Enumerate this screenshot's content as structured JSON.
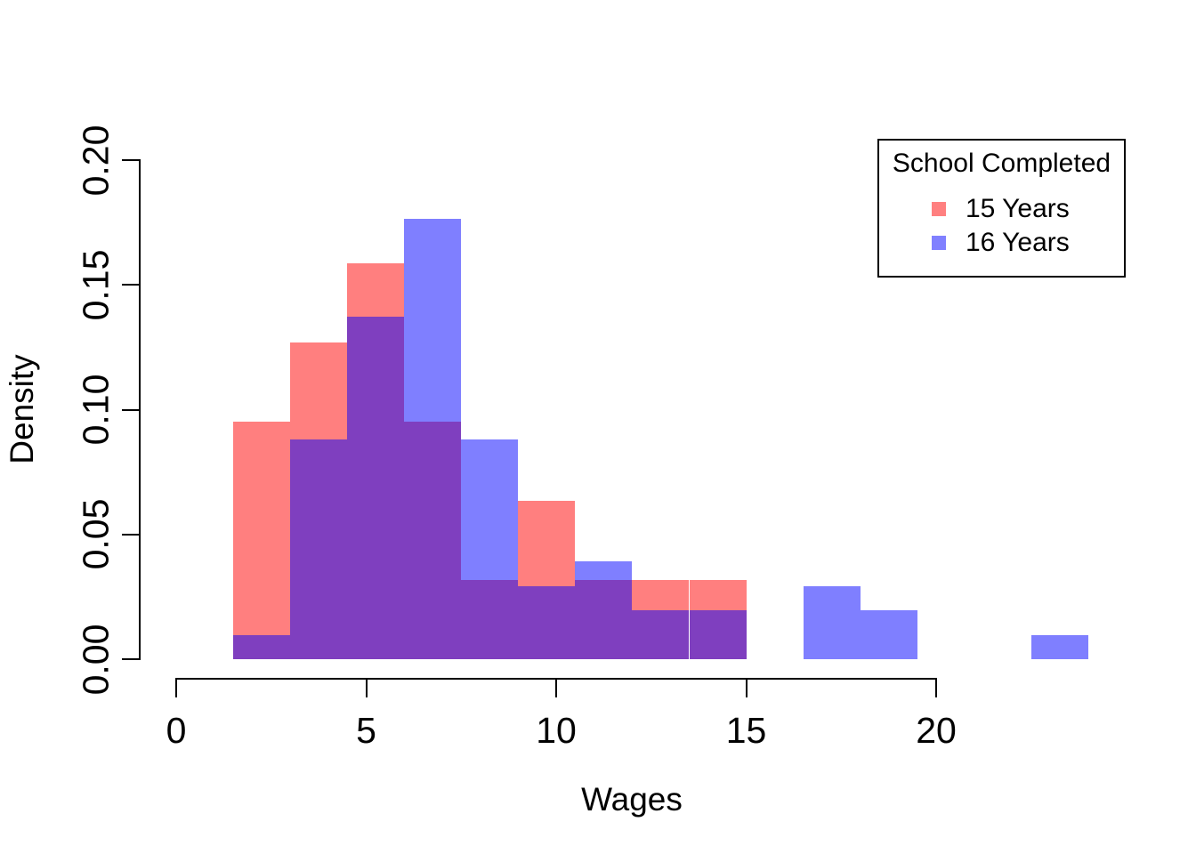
{
  "figure": {
    "background_color": "#FFFFFF",
    "text_color": "#000000"
  },
  "chart_data": {
    "type": "histogram",
    "title": "",
    "xlabel": "Wages",
    "ylabel": "Density",
    "xlim": [
      0,
      20
    ],
    "ylim": [
      0,
      0.2
    ],
    "grid": false,
    "x_ticks": [
      0,
      5,
      10,
      15,
      20
    ],
    "y_ticks": [
      {
        "value": 0.0,
        "label": "0.00"
      },
      {
        "value": 0.05,
        "label": "0.05"
      },
      {
        "value": 0.1,
        "label": "0.10"
      },
      {
        "value": 0.15,
        "label": "0.15"
      },
      {
        "value": 0.2,
        "label": "0.20"
      }
    ],
    "bin_width": 1.5,
    "bin_edges": [
      1.5,
      3,
      4.5,
      6,
      7.5,
      9,
      10.5,
      12,
      13.5,
      15,
      16.5,
      18,
      19.5,
      21,
      22.5,
      24
    ],
    "series": [
      {
        "name": "15 Years",
        "rendered_color": "#FF8080",
        "alpha_fill": "rgba(255,0,0,0.5)",
        "densities": [
          0.0952,
          0.127,
          0.1587,
          0.0952,
          0.0317,
          0.0635,
          0.0317,
          0.0317,
          0.0317,
          0,
          0,
          0,
          0,
          0,
          0
        ]
      },
      {
        "name": "16 Years",
        "rendered_color": "#8080FF",
        "alpha_fill": "rgba(0,0,255,0.5)",
        "densities": [
          0.0098,
          0.0882,
          0.1373,
          0.1765,
          0.0882,
          0.0294,
          0.0392,
          0.0196,
          0.0196,
          0,
          0.0294,
          0.0196,
          0,
          0,
          0.0098
        ]
      }
    ],
    "overlap_rendered_color": "#8040C0",
    "legend": {
      "title": "School Completed",
      "position": "topright",
      "entries": [
        {
          "label": "15 Years",
          "color": "#FF8080"
        },
        {
          "label": "16 Years",
          "color": "#8080FF"
        }
      ]
    }
  }
}
